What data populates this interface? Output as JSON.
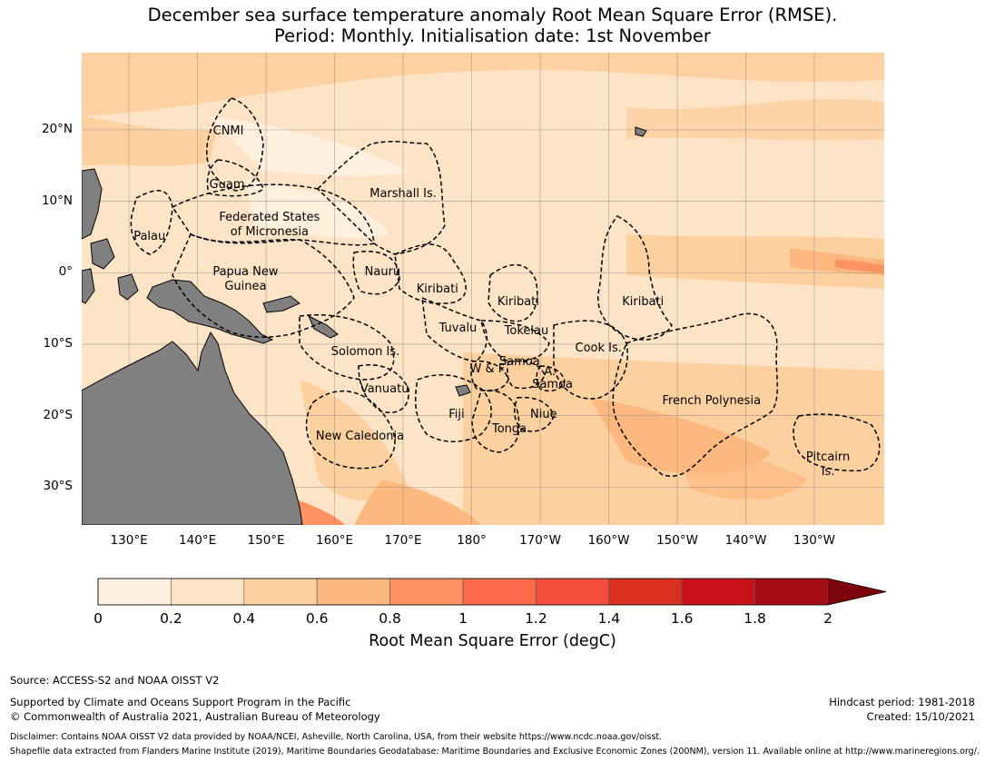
{
  "title_line1": "December sea surface temperature anomaly Root Mean Square Error (RMSE).",
  "title_line2": "Period: Monthly. Initialisation date: 1st November",
  "lat_labels": [
    {
      "text": "20°N",
      "lat": 20
    },
    {
      "text": "10°N",
      "lat": 10
    },
    {
      "text": "0°",
      "lat": 0
    },
    {
      "text": "10°S",
      "lat": -10
    },
    {
      "text": "20°S",
      "lat": -20
    },
    {
      "text": "30°S",
      "lat": -30
    }
  ],
  "lon_labels": [
    {
      "text": "130°E",
      "lon": 130
    },
    {
      "text": "140°E",
      "lon": 140
    },
    {
      "text": "150°E",
      "lon": 150
    },
    {
      "text": "160°E",
      "lon": 160
    },
    {
      "text": "170°E",
      "lon": 170
    },
    {
      "text": "180°",
      "lon": 180
    },
    {
      "text": "170°W",
      "lon": 190
    },
    {
      "text": "160°W",
      "lon": 200
    },
    {
      "text": "150°W",
      "lon": 210
    },
    {
      "text": "140°W",
      "lon": 220
    },
    {
      "text": "130°W",
      "lon": 230
    }
  ],
  "regions": [
    {
      "id": "cnmi",
      "lines": [
        "CNMI"
      ],
      "lat": 19.8,
      "lon": 144.5
    },
    {
      "id": "guam",
      "lines": [
        "Guam"
      ],
      "lat": 12.2,
      "lon": 144.3
    },
    {
      "id": "marshall",
      "lines": [
        "Marshall Is."
      ],
      "lat": 11,
      "lon": 170
    },
    {
      "id": "fsm",
      "lines": [
        "Federated States",
        "of Micronesia"
      ],
      "lat": 6.6,
      "lon": 150.5
    },
    {
      "id": "palau",
      "lines": [
        "Palau"
      ],
      "lat": 5,
      "lon": 133
    },
    {
      "id": "png",
      "lines": [
        "Papua New",
        "Guinea"
      ],
      "lat": -1,
      "lon": 147
    },
    {
      "id": "nauru",
      "lines": [
        "Nauru"
      ],
      "lat": 0,
      "lon": 167
    },
    {
      "id": "kiribati-w",
      "lines": [
        "Kiribati"
      ],
      "lat": -2.4,
      "lon": 175
    },
    {
      "id": "kiribati-c",
      "lines": [
        "Kiribati"
      ],
      "lat": -4.2,
      "lon": 186.8
    },
    {
      "id": "kiribati-e",
      "lines": [
        "Kiribati"
      ],
      "lat": -4.2,
      "lon": 205
    },
    {
      "id": "tuvalu",
      "lines": [
        "Tuvalu"
      ],
      "lat": -7.8,
      "lon": 178
    },
    {
      "id": "tokelau",
      "lines": [
        "Tokelau"
      ],
      "lat": -8.2,
      "lon": 188
    },
    {
      "id": "solomon",
      "lines": [
        "Solomon Is."
      ],
      "lat": -11.2,
      "lon": 164.5
    },
    {
      "id": "cook",
      "lines": [
        "Cook Is."
      ],
      "lat": -10.7,
      "lon": 198.5
    },
    {
      "id": "samoa",
      "lines": [
        "Samoa"
      ],
      "lat": -12.6,
      "lon": 187
    },
    {
      "id": "wf",
      "lines": [
        "W & F"
      ],
      "lat": -13.6,
      "lon": 182.3
    },
    {
      "id": "as-a",
      "lines": [
        "A."
      ],
      "lat": -13.9,
      "lon": 191.4
    },
    {
      "id": "amsamoa",
      "lines": [
        "Samoa"
      ],
      "lat": -15.7,
      "lon": 191.8
    },
    {
      "id": "vanuatu",
      "lines": [
        "Vanuatu"
      ],
      "lat": -16.4,
      "lon": 167.3
    },
    {
      "id": "frpoly",
      "lines": [
        "French Polynesia"
      ],
      "lat": -18,
      "lon": 215
    },
    {
      "id": "fiji",
      "lines": [
        "Fiji"
      ],
      "lat": -19.9,
      "lon": 177.8
    },
    {
      "id": "niue",
      "lines": [
        "Niue"
      ],
      "lat": -19.9,
      "lon": 190.5
    },
    {
      "id": "tonga",
      "lines": [
        "Tonga"
      ],
      "lat": -22,
      "lon": 185.5
    },
    {
      "id": "newcal",
      "lines": [
        "New Caledonia"
      ],
      "lat": -23,
      "lon": 163.7
    },
    {
      "id": "pitcairn",
      "lines": [
        "Pitcairn",
        "Is."
      ],
      "lat": -26.9,
      "lon": 232
    }
  ],
  "colorbar": {
    "levels": [
      0,
      0.2,
      0.4,
      0.6,
      0.8,
      1,
      1.2,
      1.4,
      1.6,
      1.8,
      2
    ],
    "tick_labels": [
      "0",
      "0.2",
      "0.4",
      "0.6",
      "0.8",
      "1",
      "1.2",
      "1.4",
      "1.6",
      "1.8",
      "2"
    ],
    "colors": [
      "#fff0df",
      "#fee4c6",
      "#fdd09f",
      "#fdb87f",
      "#fc9360",
      "#fb6a4a",
      "#f34d3c",
      "#d9301f",
      "#c81217",
      "#a50b13"
    ],
    "extend_color": "#7b0309",
    "title": "Root Mean Square Error (degC)"
  },
  "colors": {
    "land": "#808080",
    "grid": "#7f7f7f",
    "border": "#000000"
  },
  "footer": {
    "source": "Source: ACCESS-S2 and NOAA OISST V2",
    "support1": "Supported by Climate and Oceans Support Program in the Pacific",
    "support2": "© Commonwealth of Australia 2021, Australian Bureau of Meteorology",
    "hindcast": "Hindcast period: 1981-2018",
    "created": "Created: 15/10/2021",
    "disclaimer": "Disclaimer: Contains NOAA OISST V2 data provided by NOAA/NCEI, Asheville, North Carolina, USA, from their website https://www.ncdc.noaa.gov/oisst.",
    "shapefile": "Shapefile data extracted from Flanders Marine Institute (2019), Maritime Boundaries Geodatabase: Maritime Boundaries and Exclusive Economic Zones (200NM), version 11. Available online at http://www.marineregions.org/."
  }
}
